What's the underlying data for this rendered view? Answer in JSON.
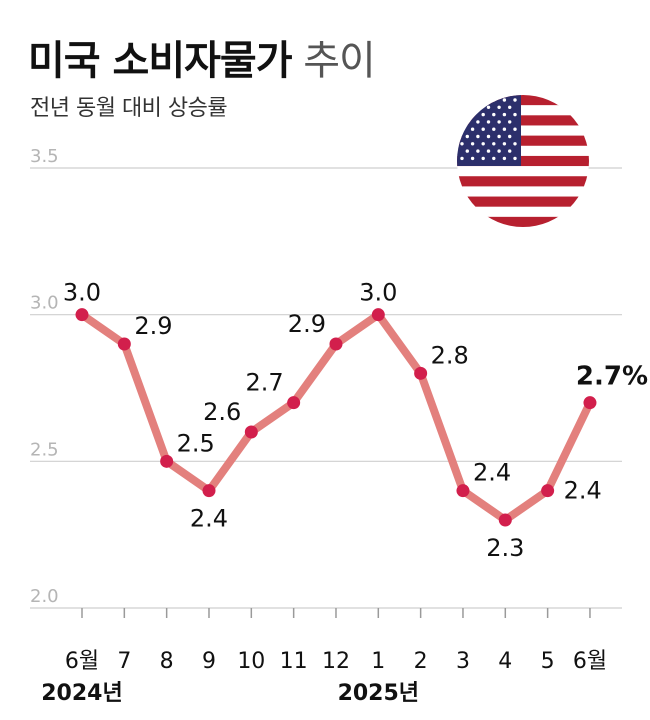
{
  "header": {
    "title_bold": "미국 소비자물가",
    "title_light": "추이",
    "subtitle": "전년 동월 대비 상승률"
  },
  "flag_icon": "us-flag-icon",
  "colors": {
    "line": "#e3807d",
    "point": "#d21f4c",
    "grid": "#cfcfcf",
    "flag_red": "#b7202f",
    "flag_blue": "#2c2f6b"
  },
  "chart_data": {
    "type": "line",
    "title": "미국 소비자물가 추이",
    "subtitle": "전년 동월 대비 상승률",
    "categories": [
      "6월",
      "7",
      "8",
      "9",
      "10",
      "11",
      "12",
      "1",
      "2",
      "3",
      "4",
      "5",
      "6월"
    ],
    "year_labels": [
      {
        "text": "2024년",
        "at_category": 0
      },
      {
        "text": "2025년",
        "at_category": 7
      }
    ],
    "series": [
      {
        "values": [
          3.0,
          2.9,
          2.5,
          2.4,
          2.6,
          2.7,
          2.9,
          3.0,
          2.8,
          2.4,
          2.3,
          2.4,
          2.7
        ]
      }
    ],
    "data_labels": [
      "3.0",
      "2.9",
      "2.5",
      "2.4",
      "2.6",
      "2.7",
      "2.9",
      "3.0",
      "2.8",
      "2.4",
      "2.3",
      "2.4",
      "2.7%"
    ],
    "yticks": [
      "3.5",
      "3.0",
      "2.5",
      "2.0"
    ],
    "ylim": [
      2.0,
      3.5
    ],
    "grid": true
  }
}
